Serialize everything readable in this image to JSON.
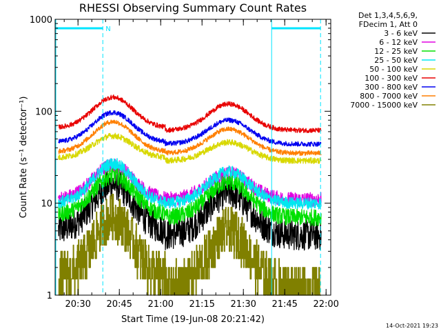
{
  "chart_data": {
    "type": "line",
    "title": "RHESSI Observing Summary Count Rates",
    "xlabel": "Start Time (19-Jun-08 20:21:42)",
    "ylabel": "Count Rate (s⁻¹ detector⁻¹)",
    "yscale": "log",
    "ylim": [
      1,
      1000
    ],
    "yticks": [
      {
        "value": 1,
        "label": "1"
      },
      {
        "value": 10,
        "label": "10"
      },
      {
        "value": 100,
        "label": "100"
      },
      {
        "value": 1000,
        "label": "1000"
      }
    ],
    "xlim_minutes": [
      0,
      100
    ],
    "xticks": [
      {
        "minute": 8.3,
        "label": "20:30"
      },
      {
        "minute": 23.3,
        "label": "20:45"
      },
      {
        "minute": 38.3,
        "label": "21:00"
      },
      {
        "minute": 53.3,
        "label": "21:15"
      },
      {
        "minute": 68.3,
        "label": "21:30"
      },
      {
        "minute": 83.3,
        "label": "21:45"
      },
      {
        "minute": 98.3,
        "label": "22:00"
      }
    ],
    "legend_header": [
      "Det 1,3,4,5,6,9,",
      "FDecim 1, Att 0"
    ],
    "series": [
      {
        "name": "3 - 6 keV",
        "color": "#000000",
        "peak1": 16,
        "trough1": 5,
        "peak2": 13,
        "base": 4.5,
        "noise": 0.13
      },
      {
        "name": "6 - 12 keV",
        "color": "#e000e0",
        "peak1": 26,
        "trough1": 11,
        "peak2": 21,
        "base": 11,
        "noise": 0.06
      },
      {
        "name": "12 - 25 keV",
        "color": "#00e000",
        "peak1": 20,
        "trough1": 7.5,
        "peak2": 17,
        "base": 7,
        "noise": 0.07
      },
      {
        "name": "25 - 50 keV",
        "color": "#00e8f0",
        "peak1": 27,
        "trough1": 10,
        "peak2": 22,
        "base": 10,
        "noise": 0.05
      },
      {
        "name": "50 - 100 keV",
        "color": "#d8d800",
        "peak1": 54,
        "trough1": 31,
        "peak2": 46,
        "base": 29,
        "noise": 0.025
      },
      {
        "name": "100 - 300 keV",
        "color": "#e80000",
        "peak1": 142,
        "trough1": 66,
        "peak2": 120,
        "base": 62,
        "noise": 0.02
      },
      {
        "name": "300 - 800 keV",
        "color": "#0000f0",
        "peak1": 97,
        "trough1": 46,
        "peak2": 80,
        "base": 44,
        "noise": 0.02
      },
      {
        "name": "800 - 7000 keV",
        "color": "#ff7f00",
        "peak1": 77,
        "trough1": 36,
        "peak2": 64,
        "base": 35,
        "noise": 0.02
      },
      {
        "name": "7000 - 15000 keV",
        "color": "#808000",
        "peak1": 7,
        "trough1": 1.5,
        "peak2": 5,
        "base": 1.2,
        "noise": 0.2,
        "step": true
      }
    ],
    "annotations": [
      {
        "type": "span",
        "from_minute": 0,
        "to_minute": 17.3,
        "label": "N"
      },
      {
        "type": "span",
        "from_minute": 78.3,
        "to_minute": 96.3,
        "label": ""
      }
    ]
  },
  "timestamp": "14-Oct-2021 19:23"
}
